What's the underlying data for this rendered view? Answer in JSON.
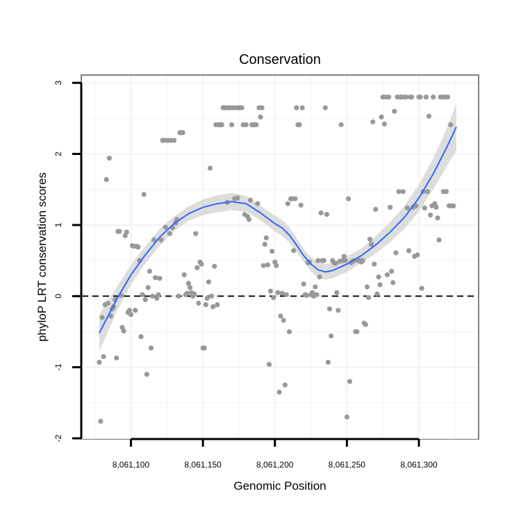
{
  "chart_data": {
    "type": "scatter",
    "title": "Conservation",
    "xlabel": "Genomic Position",
    "ylabel": "phyloP LRT conservation scores",
    "xlim": [
      8061066,
      8061341
    ],
    "ylim": [
      -2,
      3.1
    ],
    "xticks": [
      8061100,
      8061150,
      8061200,
      8061250,
      8061300
    ],
    "xtick_labels": [
      "8,061,100",
      "8,061,150",
      "8,061,200",
      "8,061,250",
      "8,061,300"
    ],
    "yticks": [
      -2,
      -1,
      0,
      1,
      2,
      3
    ],
    "ytick_labels": [
      "-2",
      "-1",
      "0",
      "1",
      "2",
      "3"
    ],
    "grid": true,
    "reference_line": {
      "y": 0,
      "style": "dashed"
    },
    "colors": {
      "points": "#999999",
      "smooth": "#3366ff",
      "band": "#d9d9d9",
      "panel_border": "#808080",
      "grid": "#f2f2f2"
    },
    "points": [
      [
        8061078,
        -0.93
      ],
      [
        8061079,
        -1.76
      ],
      [
        8061080,
        -0.3
      ],
      [
        8061081,
        -0.85
      ],
      [
        8061082,
        -0.12
      ],
      [
        8061083,
        1.64
      ],
      [
        8061084,
        -0.1
      ],
      [
        8061085,
        1.94
      ],
      [
        8061086,
        -0.28
      ],
      [
        8061087,
        -0.18
      ],
      [
        8061088,
        -0.15
      ],
      [
        8061089,
        -0.05
      ],
      [
        8061090,
        -0.87
      ],
      [
        8061091,
        0.91
      ],
      [
        8061092,
        0.91
      ],
      [
        8061093,
        0.01
      ],
      [
        8061094,
        -0.44
      ],
      [
        8061095,
        -0.49
      ],
      [
        8061096,
        0.85
      ],
      [
        8061097,
        0.9
      ],
      [
        8061098,
        -0.23
      ],
      [
        8061099,
        -0.2
      ],
      [
        8061100,
        -0.26
      ],
      [
        8061101,
        0.71
      ],
      [
        8061102,
        0.7
      ],
      [
        8061103,
        -0.2
      ],
      [
        8061104,
        0.7
      ],
      [
        8061105,
        0.69
      ],
      [
        8061106,
        0.5
      ],
      [
        8061107,
        -0.57
      ],
      [
        8061108,
        0.02
      ],
      [
        8061109,
        1.43
      ],
      [
        8061110,
        -0.05
      ],
      [
        8061111,
        -1.1
      ],
      [
        8061112,
        0.12
      ],
      [
        8061113,
        0.35
      ],
      [
        8061114,
        -0.73
      ],
      [
        8061115,
        0.0
      ],
      [
        8061116,
        0.79
      ],
      [
        8061117,
        0.26
      ],
      [
        8061118,
        -0.03
      ],
      [
        8061119,
        0.02
      ],
      [
        8061120,
        0.25
      ],
      [
        8061121,
        0.79
      ],
      [
        8061122,
        2.19
      ],
      [
        8061123,
        2.19
      ],
      [
        8061124,
        0.97
      ],
      [
        8061125,
        2.19
      ],
      [
        8061126,
        2.19
      ],
      [
        8061127,
        0.88
      ],
      [
        8061128,
        2.19
      ],
      [
        8061129,
        0.96
      ],
      [
        8061130,
        2.19
      ],
      [
        8061131,
        1.03
      ],
      [
        8061132,
        1.08
      ],
      [
        8061133,
        0.0
      ],
      [
        8061134,
        2.3
      ],
      [
        8061135,
        2.3
      ],
      [
        8061136,
        2.3
      ],
      [
        8061137,
        0.3
      ],
      [
        8061138,
        0.02
      ],
      [
        8061139,
        0.04
      ],
      [
        8061140,
        0.18
      ],
      [
        8061141,
        0.12
      ],
      [
        8061142,
        0.05
      ],
      [
        8061143,
        0.0
      ],
      [
        8061144,
        0.03
      ],
      [
        8061145,
        0.88
      ],
      [
        8061146,
        0.4
      ],
      [
        8061147,
        -0.1
      ],
      [
        8061148,
        0.48
      ],
      [
        8061149,
        0.45
      ],
      [
        8061150,
        -0.73
      ],
      [
        8061151,
        -0.73
      ],
      [
        8061152,
        -0.12
      ],
      [
        8061153,
        -0.03
      ],
      [
        8061154,
        0.2
      ],
      [
        8061155,
        1.8
      ],
      [
        8061156,
        0.0
      ],
      [
        8061157,
        -0.15
      ],
      [
        8061158,
        0.42
      ],
      [
        8061159,
        2.41
      ],
      [
        8061160,
        -0.12
      ],
      [
        8061161,
        2.41
      ],
      [
        8061162,
        2.41
      ],
      [
        8061163,
        2.41
      ],
      [
        8061164,
        2.65
      ],
      [
        8061165,
        2.65
      ],
      [
        8061166,
        2.65
      ],
      [
        8061167,
        1.32
      ],
      [
        8061168,
        2.65
      ],
      [
        8061169,
        2.65
      ],
      [
        8061170,
        2.41
      ],
      [
        8061171,
        2.65
      ],
      [
        8061172,
        1.37
      ],
      [
        8061173,
        2.65
      ],
      [
        8061174,
        1.38
      ],
      [
        8061175,
        2.65
      ],
      [
        8061176,
        2.65
      ],
      [
        8061177,
        2.65
      ],
      [
        8061178,
        2.41
      ],
      [
        8061179,
        1.15
      ],
      [
        8061180,
        2.41
      ],
      [
        8061181,
        1.12
      ],
      [
        8061182,
        1.08
      ],
      [
        8061183,
        1.35
      ],
      [
        8061184,
        2.41
      ],
      [
        8061185,
        2.41
      ],
      [
        8061186,
        2.41
      ],
      [
        8061187,
        2.41
      ],
      [
        8061188,
        1.3
      ],
      [
        8061189,
        2.65
      ],
      [
        8061190,
        2.52
      ],
      [
        8061191,
        2.65
      ],
      [
        8061192,
        0.43
      ],
      [
        8061193,
        0.73
      ],
      [
        8061194,
        0.82
      ],
      [
        8061195,
        0.44
      ],
      [
        8061196,
        -0.96
      ],
      [
        8061197,
        0.07
      ],
      [
        8061198,
        0.63
      ],
      [
        8061199,
        -0.02
      ],
      [
        8061200,
        0.48
      ],
      [
        8061201,
        0.43
      ],
      [
        8061202,
        0.05
      ],
      [
        8061203,
        -1.35
      ],
      [
        8061204,
        -0.28
      ],
      [
        8061205,
        0.04
      ],
      [
        8061206,
        -0.34
      ],
      [
        8061207,
        -1.25
      ],
      [
        8061208,
        0.02
      ],
      [
        8061209,
        1.3
      ],
      [
        8061210,
        -0.5
      ],
      [
        8061211,
        1.37
      ],
      [
        8061212,
        1.37
      ],
      [
        8061213,
        0.64
      ],
      [
        8061214,
        1.37
      ],
      [
        8061215,
        2.65
      ],
      [
        8061216,
        2.41
      ],
      [
        8061217,
        2.41
      ],
      [
        8061218,
        1.28
      ],
      [
        8061219,
        2.65
      ],
      [
        8061220,
        0.17
      ],
      [
        8061221,
        0.02
      ],
      [
        8061222,
        0.01
      ],
      [
        8061223,
        0.47
      ],
      [
        8061224,
        0.48
      ],
      [
        8061225,
        0.02
      ],
      [
        8061226,
        0.05
      ],
      [
        8061227,
        0.0
      ],
      [
        8061228,
        0.13
      ],
      [
        8061229,
        0.02
      ],
      [
        8061230,
        0.5
      ],
      [
        8061231,
        0.27
      ],
      [
        8061232,
        1.17
      ],
      [
        8061233,
        0.5
      ],
      [
        8061234,
        0.5
      ],
      [
        8061235,
        2.65
      ],
      [
        8061236,
        1.15
      ],
      [
        8061237,
        -0.93
      ],
      [
        8061238,
        -0.18
      ],
      [
        8061239,
        -0.56
      ],
      [
        8061240,
        0.5
      ],
      [
        8061241,
        0.47
      ],
      [
        8061242,
        0.46
      ],
      [
        8061243,
        0.05
      ],
      [
        8061244,
        -0.2
      ],
      [
        8061245,
        0.49
      ],
      [
        8061246,
        2.41
      ],
      [
        8061247,
        0.5
      ],
      [
        8061248,
        0.56
      ],
      [
        8061249,
        0.5
      ],
      [
        8061250,
        -1.7
      ],
      [
        8061251,
        1.37
      ],
      [
        8061252,
        -1.2
      ],
      [
        8061253,
        0.47
      ],
      [
        8061254,
        0.49
      ],
      [
        8061255,
        0.5
      ],
      [
        8061256,
        -0.5
      ],
      [
        8061257,
        -0.5
      ],
      [
        8061258,
        0.5
      ],
      [
        8061259,
        0.5
      ],
      [
        8061260,
        0.48
      ],
      [
        8061261,
        0.5
      ],
      [
        8061262,
        -0.38
      ],
      [
        8061263,
        -0.4
      ],
      [
        8061264,
        0.13
      ],
      [
        8061265,
        -0.02
      ],
      [
        8061266,
        0.8
      ],
      [
        8061267,
        0.73
      ],
      [
        8061268,
        2.45
      ],
      [
        8061269,
        0.45
      ],
      [
        8061270,
        1.22
      ],
      [
        8061271,
        0.03
      ],
      [
        8061272,
        0.27
      ],
      [
        8061273,
        0.16
      ],
      [
        8061274,
        2.52
      ],
      [
        8061275,
        2.8
      ],
      [
        8061276,
        2.42
      ],
      [
        8061277,
        2.8
      ],
      [
        8061278,
        0.3
      ],
      [
        8061279,
        2.8
      ],
      [
        8061280,
        1.25
      ],
      [
        8061281,
        0.35
      ],
      [
        8061282,
        0.19
      ],
      [
        8061283,
        2.6
      ],
      [
        8061284,
        0.61
      ],
      [
        8061285,
        2.8
      ],
      [
        8061286,
        1.47
      ],
      [
        8061287,
        2.8
      ],
      [
        8061288,
        2.8
      ],
      [
        8061289,
        1.47
      ],
      [
        8061290,
        2.8
      ],
      [
        8061291,
        2.8
      ],
      [
        8061292,
        1.24
      ],
      [
        8061293,
        0.64
      ],
      [
        8061294,
        2.8
      ],
      [
        8061295,
        2.8
      ],
      [
        8061296,
        1.25
      ],
      [
        8061297,
        0.56
      ],
      [
        8061298,
        1.27
      ],
      [
        8061299,
        0.58
      ],
      [
        8061300,
        2.8
      ],
      [
        8061301,
        2.8
      ],
      [
        8061302,
        0.11
      ],
      [
        8061303,
        1.47
      ],
      [
        8061304,
        1.24
      ],
      [
        8061305,
        2.8
      ],
      [
        8061306,
        1.47
      ],
      [
        8061307,
        2.53
      ],
      [
        8061308,
        1.14
      ],
      [
        8061309,
        1.27
      ],
      [
        8061310,
        2.8
      ],
      [
        8061311,
        1.3
      ],
      [
        8061312,
        1.25
      ],
      [
        8061313,
        1.1
      ],
      [
        8061314,
        0.79
      ],
      [
        8061315,
        2.8
      ],
      [
        8061316,
        2.8
      ],
      [
        8061317,
        1.47
      ],
      [
        8061318,
        2.8
      ],
      [
        8061319,
        1.47
      ],
      [
        8061320,
        2.8
      ],
      [
        8061321,
        1.27
      ],
      [
        8061322,
        2.41
      ],
      [
        8061323,
        1.27
      ],
      [
        8061324,
        1.27
      ]
    ],
    "smooth": {
      "x": [
        8061078,
        8061090,
        8061100,
        8061110,
        8061120,
        8061130,
        8061140,
        8061150,
        8061160,
        8061170,
        8061180,
        8061190,
        8061200,
        8061205,
        8061210,
        8061215,
        8061220,
        8061225,
        8061230,
        8061235,
        8061240,
        8061250,
        8061260,
        8061270,
        8061280,
        8061290,
        8061300,
        8061310,
        8061320,
        8061326
      ],
      "y": [
        -0.52,
        -0.05,
        0.3,
        0.58,
        0.83,
        1.02,
        1.16,
        1.25,
        1.3,
        1.33,
        1.3,
        1.17,
        1.02,
        0.96,
        0.86,
        0.72,
        0.57,
        0.45,
        0.37,
        0.34,
        0.36,
        0.45,
        0.57,
        0.72,
        0.9,
        1.11,
        1.38,
        1.72,
        2.12,
        2.38
      ],
      "lower": [
        -0.78,
        -0.22,
        0.16,
        0.46,
        0.71,
        0.92,
        1.06,
        1.14,
        1.18,
        1.21,
        1.19,
        1.07,
        0.91,
        0.85,
        0.75,
        0.62,
        0.48,
        0.35,
        0.26,
        0.23,
        0.25,
        0.34,
        0.47,
        0.6,
        0.76,
        0.95,
        1.19,
        1.5,
        1.85,
        2.05
      ],
      "upper": [
        -0.26,
        0.12,
        0.44,
        0.7,
        0.95,
        1.12,
        1.26,
        1.36,
        1.42,
        1.45,
        1.41,
        1.27,
        1.13,
        1.07,
        0.97,
        0.82,
        0.66,
        0.55,
        0.48,
        0.45,
        0.47,
        0.56,
        0.67,
        0.84,
        1.04,
        1.27,
        1.57,
        1.94,
        2.39,
        2.71
      ]
    }
  }
}
